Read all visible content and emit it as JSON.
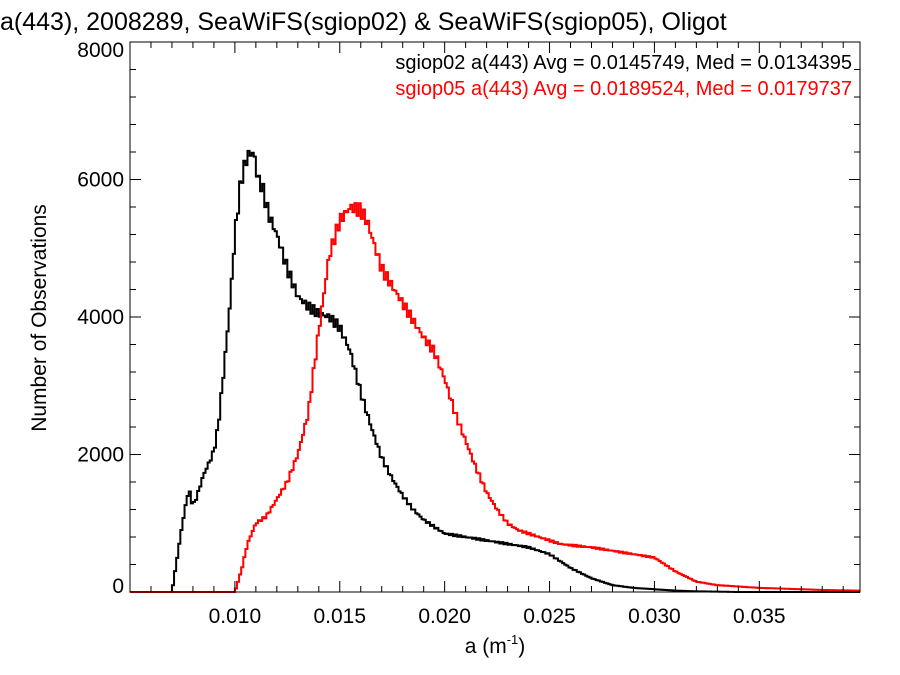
{
  "chart_data": {
    "type": "line",
    "title": "a(443), 2008289, SeaWiFS(sgiop02) & SeaWiFS(sgiop05), Oligot",
    "xlabel": "a (m",
    "xlabel_sup": "-1",
    "xlabel_close": ")",
    "ylabel": "Number of Observations",
    "xlim": [
      0.005,
      0.0398
    ],
    "ylim": [
      0,
      8000
    ],
    "x_ticks": [
      0.01,
      0.015,
      0.02,
      0.025,
      0.03,
      0.035
    ],
    "x_tick_labels": [
      "0.010",
      "0.015",
      "0.020",
      "0.025",
      "0.030",
      "0.035"
    ],
    "y_ticks": [
      0,
      2000,
      4000,
      6000,
      8000
    ],
    "y_tick_labels": [
      "0",
      "2000",
      "4000",
      "6000",
      "8000"
    ],
    "annotations": [
      {
        "text": "sgiop02 a(443) Avg = 0.0145749, Med = 0.0134395",
        "color": "#000000"
      },
      {
        "text": "sgiop05 a(443) Avg = 0.0189524, Med = 0.0179737",
        "color": "#ff0000"
      }
    ],
    "series": [
      {
        "color": "#000000",
        "x": [
          0.005,
          0.007,
          0.0072,
          0.0075,
          0.0078,
          0.008,
          0.0082,
          0.0085,
          0.0088,
          0.009,
          0.0092,
          0.0095,
          0.0098,
          0.01,
          0.0103,
          0.0106,
          0.0109,
          0.0111,
          0.0113,
          0.0116,
          0.012,
          0.0125,
          0.013,
          0.0135,
          0.014,
          0.0145,
          0.015,
          0.0155,
          0.016,
          0.0165,
          0.017,
          0.0175,
          0.018,
          0.0185,
          0.019,
          0.0195,
          0.02,
          0.021,
          0.022,
          0.023,
          0.024,
          0.025,
          0.026,
          0.027,
          0.028,
          0.029,
          0.03,
          0.031,
          0.032,
          0.033,
          0.034,
          0.035,
          0.036,
          0.037,
          0.038,
          0.0398
        ],
        "y": [
          0,
          0,
          400,
          1000,
          1500,
          1250,
          1400,
          1700,
          1900,
          2050,
          2400,
          3300,
          4300,
          5200,
          6000,
          6350,
          6400,
          6000,
          5900,
          5500,
          5200,
          4700,
          4300,
          4150,
          4050,
          4000,
          3850,
          3500,
          2900,
          2400,
          1950,
          1650,
          1400,
          1200,
          1050,
          950,
          850,
          800,
          750,
          700,
          650,
          550,
          350,
          200,
          100,
          60,
          40,
          20,
          10,
          5,
          0,
          0,
          0,
          0,
          0,
          0
        ]
      },
      {
        "color": "#ff0000",
        "x": [
          0.005,
          0.01,
          0.0103,
          0.0106,
          0.011,
          0.0115,
          0.012,
          0.0125,
          0.013,
          0.0135,
          0.014,
          0.0145,
          0.015,
          0.0155,
          0.016,
          0.0163,
          0.0166,
          0.017,
          0.0175,
          0.018,
          0.0185,
          0.019,
          0.0195,
          0.02,
          0.0205,
          0.021,
          0.0215,
          0.022,
          0.0225,
          0.023,
          0.0235,
          0.024,
          0.0245,
          0.025,
          0.0255,
          0.026,
          0.027,
          0.028,
          0.029,
          0.03,
          0.031,
          0.032,
          0.033,
          0.034,
          0.035,
          0.036,
          0.037,
          0.038,
          0.0398
        ],
        "y": [
          0,
          0,
          300,
          700,
          1000,
          1100,
          1350,
          1600,
          2000,
          2600,
          3800,
          4900,
          5400,
          5600,
          5550,
          5400,
          5100,
          4700,
          4450,
          4200,
          3950,
          3700,
          3500,
          3100,
          2600,
          2200,
          1800,
          1450,
          1200,
          1000,
          900,
          850,
          800,
          750,
          700,
          680,
          650,
          600,
          550,
          500,
          300,
          150,
          100,
          80,
          60,
          50,
          40,
          30,
          20
        ]
      }
    ]
  }
}
